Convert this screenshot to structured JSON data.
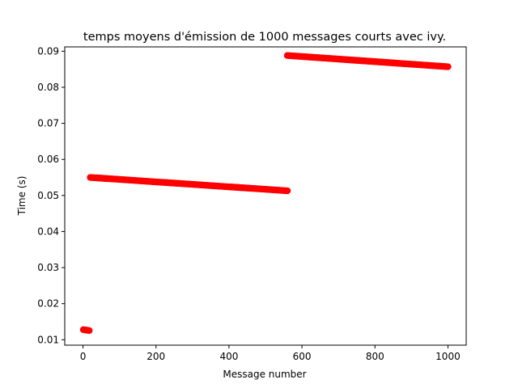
{
  "chart_data": {
    "type": "scatter",
    "title": "temps moyens d'émission de 1000 messages courts avec ivy.",
    "xlabel": "Message number",
    "ylabel": "Time (s)",
    "xlim": [
      -50,
      1050
    ],
    "ylim": [
      0.0085,
      0.0912
    ],
    "xticks": [
      0,
      200,
      400,
      600,
      800,
      1000
    ],
    "yticks": [
      0.01,
      0.02,
      0.03,
      0.04,
      0.05,
      0.06,
      0.07,
      0.08,
      0.09
    ],
    "grid": false,
    "marker_color": "#ff0000",
    "segments": [
      {
        "x_start": 1,
        "x_end": 20,
        "y_start": 0.0128,
        "y_end": 0.0125
      },
      {
        "x_start": 20,
        "x_end": 560,
        "y_start": 0.055,
        "y_end": 0.0513
      },
      {
        "x_start": 560,
        "x_end": 1000,
        "y_start": 0.0888,
        "y_end": 0.0857
      }
    ]
  }
}
